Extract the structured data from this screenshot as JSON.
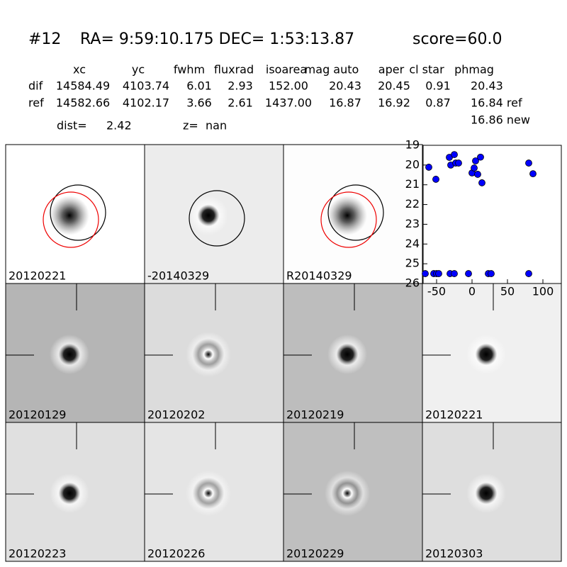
{
  "header": {
    "id": "#12",
    "coords": "RA= 9:59:10.175 DEC= 1:53:13.87",
    "score": "score=60.0"
  },
  "table": {
    "columns": [
      "xc",
      "yc",
      "fwhm",
      "fluxrad",
      "isoarea",
      "mag auto",
      "aper",
      "cl star",
      "phmag"
    ],
    "rows": [
      [
        "dif",
        "14584.49",
        "4103.74",
        "6.01",
        "2.93",
        "152.00",
        "20.43",
        "20.45",
        "0.91",
        "20.43"
      ],
      [
        "ref",
        "14582.66",
        "4102.17",
        "3.66",
        "2.61",
        "1437.00",
        "16.87",
        "16.92",
        "0.87",
        "16.84 ref"
      ]
    ],
    "extra": "16.86 new"
  },
  "dist": {
    "dist_label": "dist=",
    "dist_value": "2.42",
    "z_label": "z=",
    "z_value": "nan"
  },
  "panels": [
    {
      "label": "20120221"
    },
    {
      "label": "-20140329"
    },
    {
      "label": "R20140329"
    },
    {
      "label": "20120129"
    },
    {
      "label": "20120202"
    },
    {
      "label": "20120219"
    },
    {
      "label": "20120221",
      "color": "#ff0000"
    },
    {
      "label": "20120223"
    },
    {
      "label": "20120226"
    },
    {
      "label": "20120229"
    },
    {
      "label": "20120303"
    }
  ],
  "chart_data": {
    "type": "scatter",
    "color": "#0000ff",
    "x": [
      -61,
      -51,
      -32,
      -30,
      -25,
      -23,
      -19,
      0,
      3,
      5,
      8,
      12,
      14,
      80,
      86,
      -66,
      -54,
      -50,
      -47,
      -31,
      -25,
      -5,
      23,
      27,
      80
    ],
    "values": [
      20.11,
      20.72,
      19.61,
      20.0,
      19.47,
      19.9,
      19.9,
      20.4,
      20.15,
      19.79,
      20.47,
      19.6,
      20.9,
      19.9,
      20.44,
      25.5,
      25.5,
      25.5,
      25.5,
      25.5,
      25.5,
      25.5,
      25.5,
      25.5,
      25.5
    ],
    "xlim": [
      -69,
      126
    ],
    "xticks": [
      -50,
      0,
      50,
      100
    ],
    "ylim": [
      19,
      26
    ],
    "yticks": [
      19,
      20,
      21,
      22,
      23,
      24,
      25,
      26
    ],
    "y_inverted": true
  }
}
